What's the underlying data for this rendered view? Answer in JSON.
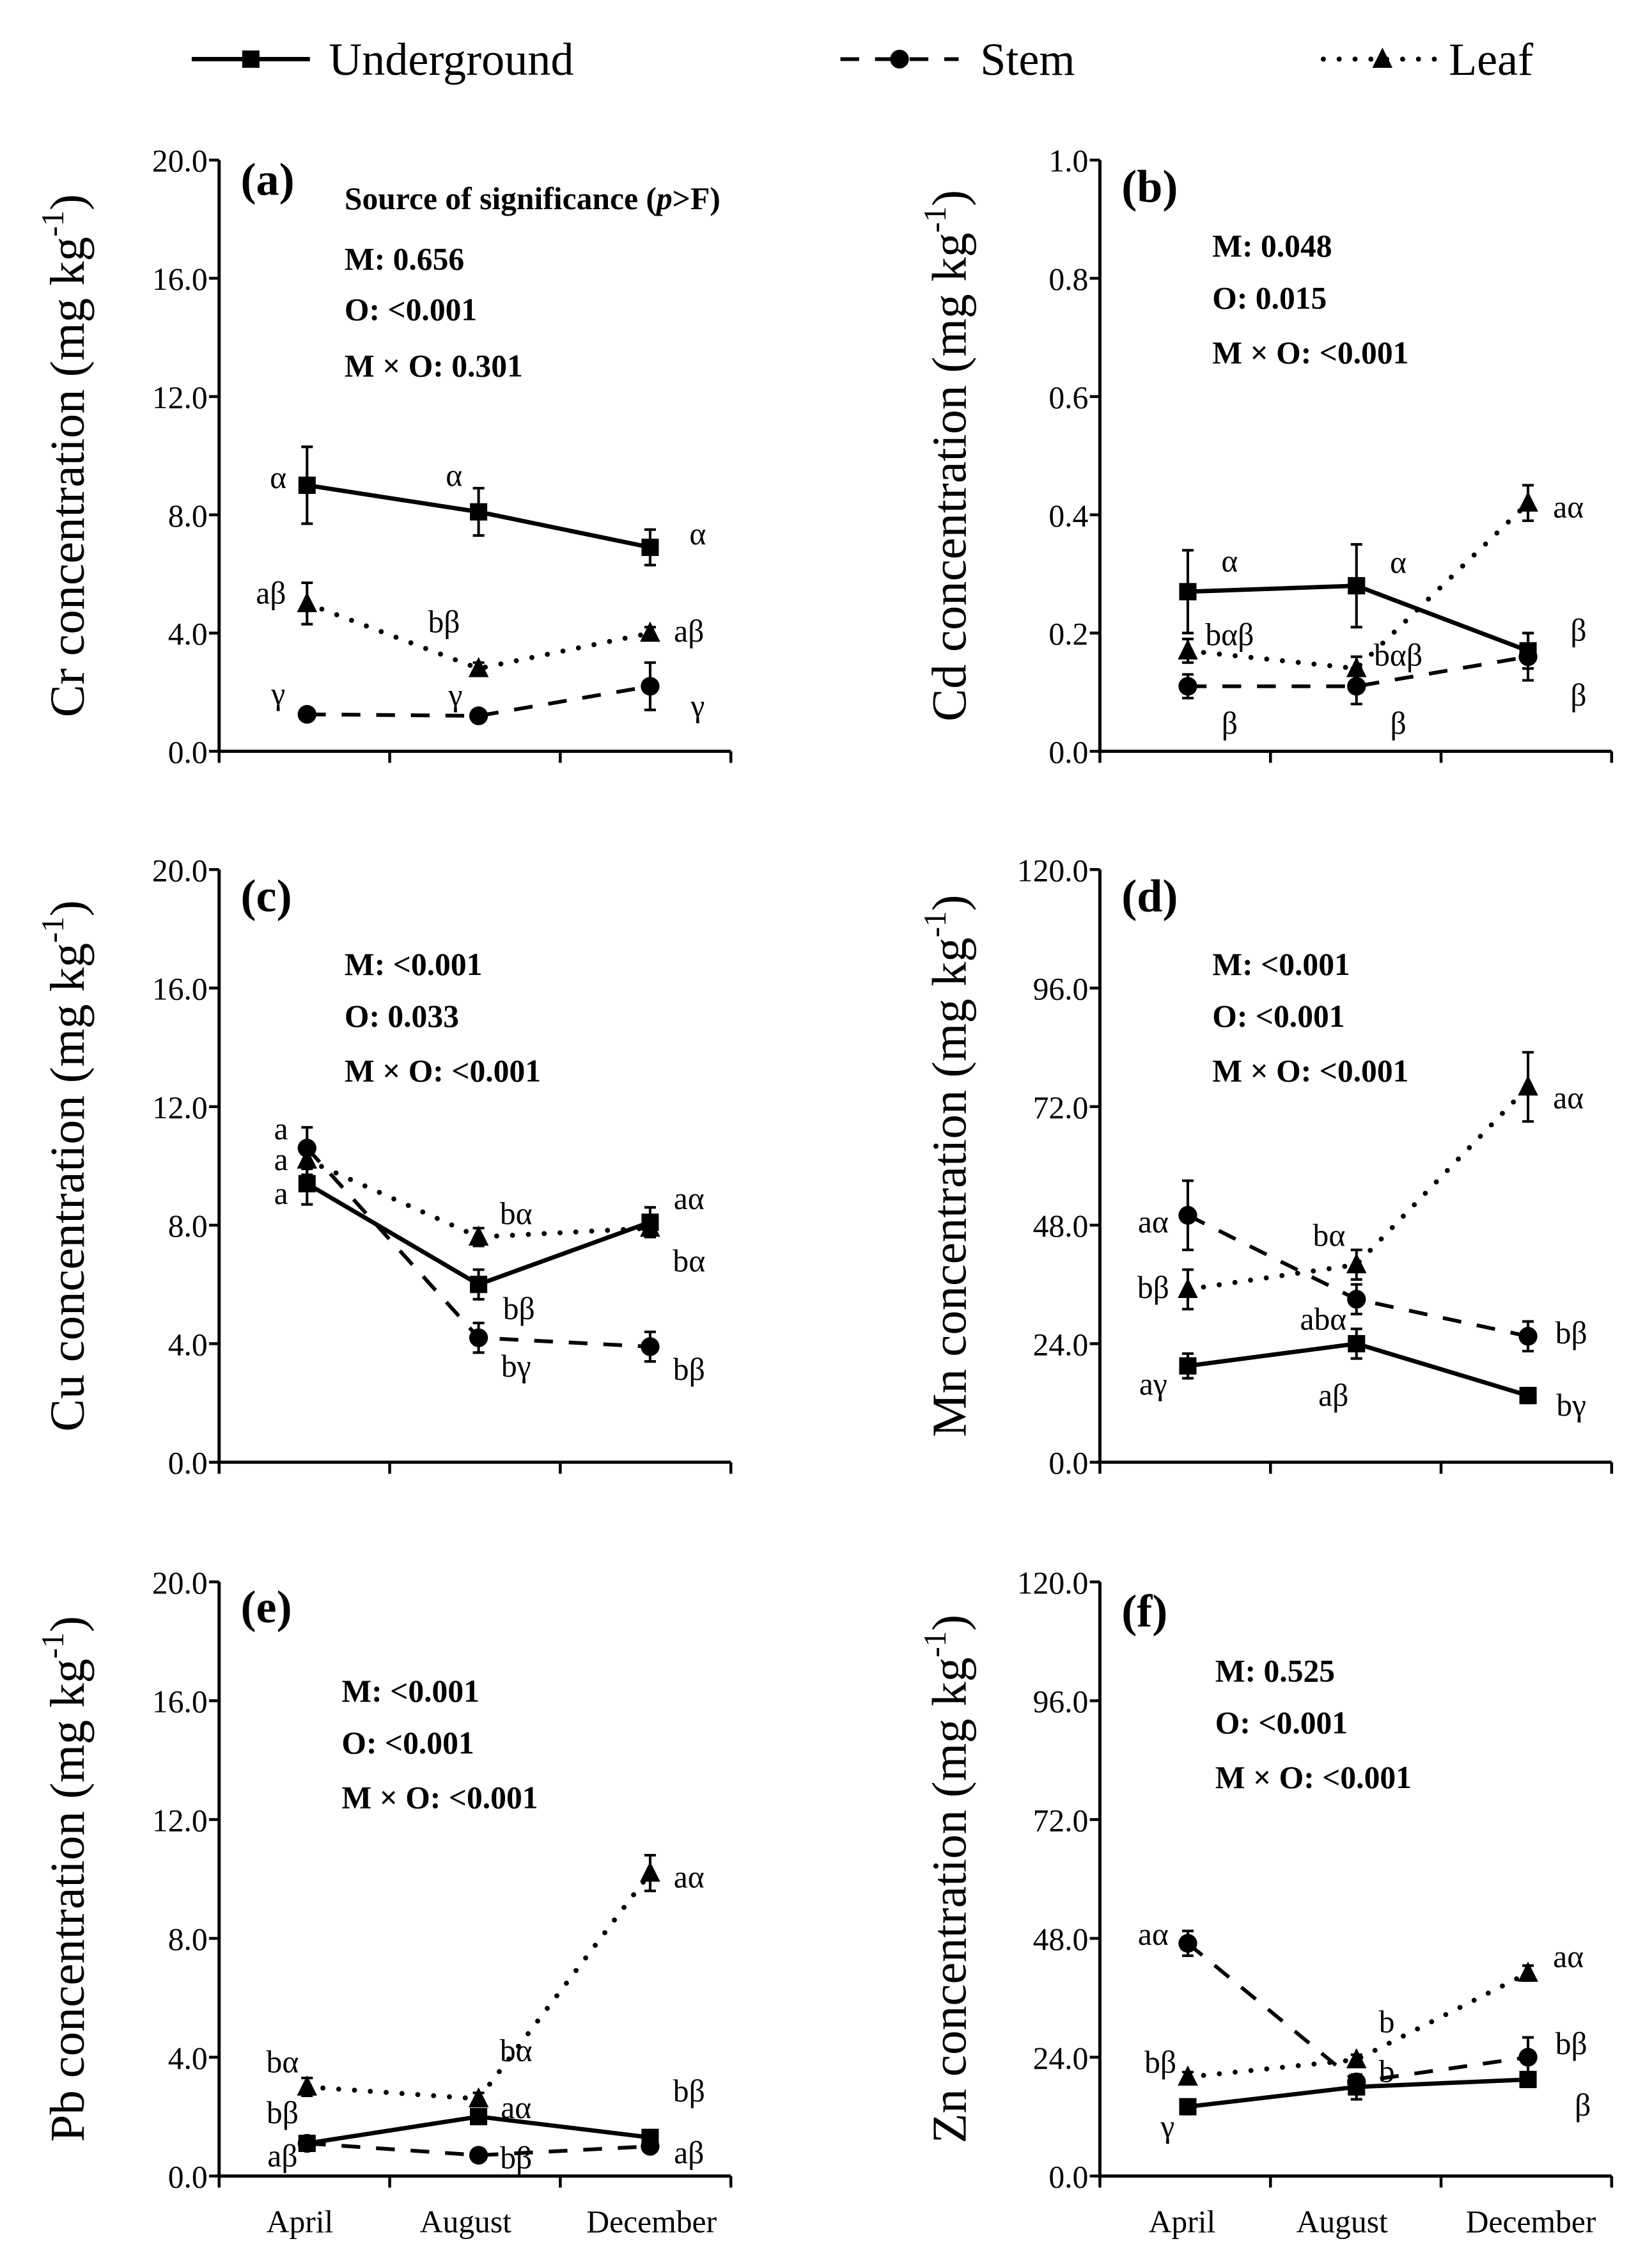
{
  "legend": [
    {
      "name": "Underground",
      "style": "solid",
      "marker": "square"
    },
    {
      "name": "Stem",
      "style": "dashed",
      "marker": "circle"
    },
    {
      "name": "Leaf",
      "style": "dotted",
      "marker": "triangle"
    }
  ],
  "chart_data": [
    {
      "type": "line",
      "panel": "(a)",
      "ylabel": "Cr concentration (mg kg",
      "ylim": [
        0,
        20
      ],
      "yticks": [
        "0.0",
        "4.0",
        "8.0",
        "12.0",
        "16.0",
        "20.0"
      ],
      "categories": [
        "April",
        "August",
        "December"
      ],
      "significance": [
        "Source of significance (p>F)",
        "M: 0.656",
        "O: <0.001",
        "M × O: 0.301"
      ],
      "series": [
        {
          "name": "Underground",
          "values": [
            9.0,
            8.1,
            6.9
          ],
          "err": [
            1.3,
            0.8,
            0.6
          ],
          "labels": [
            "α",
            "α",
            "α"
          ]
        },
        {
          "name": "Stem",
          "values": [
            1.25,
            1.2,
            2.2
          ],
          "err": [
            0.1,
            0.1,
            0.8
          ],
          "labels": [
            "γ",
            "γ",
            "γ"
          ]
        },
        {
          "name": "Leaf",
          "values": [
            5.0,
            2.8,
            4.0
          ],
          "err": [
            0.7,
            0.2,
            0.2
          ],
          "labels": [
            "aβ",
            "bβ",
            "aβ"
          ]
        }
      ]
    },
    {
      "type": "line",
      "panel": "(b)",
      "ylabel": "Cd concentration (mg kg",
      "ylim": [
        0,
        1
      ],
      "yticks": [
        "0.0",
        "0.2",
        "0.4",
        "0.6",
        "0.8",
        "1.0"
      ],
      "categories": [
        "April",
        "August",
        "December"
      ],
      "significance": [
        "M: 0.048",
        "O: 0.015",
        "M × O: <0.001"
      ],
      "series": [
        {
          "name": "Underground",
          "values": [
            0.27,
            0.28,
            0.17
          ],
          "err": [
            0.07,
            0.07,
            0.03
          ],
          "labels": [
            "α",
            "α",
            "β"
          ]
        },
        {
          "name": "Stem",
          "values": [
            0.11,
            0.11,
            0.16
          ],
          "err": [
            0.02,
            0.03,
            0.04
          ],
          "labels": [
            "β",
            "β",
            "β"
          ]
        },
        {
          "name": "Leaf",
          "values": [
            0.17,
            0.14,
            0.42
          ],
          "err": [
            0.02,
            0.02,
            0.03
          ],
          "labels": [
            "bαβ",
            "bαβ",
            "aα"
          ]
        }
      ]
    },
    {
      "type": "line",
      "panel": "(c)",
      "ylabel": "Cu concentration (mg kg",
      "ylim": [
        0,
        20
      ],
      "yticks": [
        "0.0",
        "4.0",
        "8.0",
        "12.0",
        "16.0",
        "20.0"
      ],
      "categories": [
        "April",
        "August",
        "December"
      ],
      "significance": [
        "M: <0.001",
        "O: 0.033",
        "M × O: <0.001"
      ],
      "series": [
        {
          "name": "Underground",
          "values": [
            9.4,
            6.0,
            8.1
          ],
          "err": [
            0.7,
            0.5,
            0.5
          ],
          "labels": [
            "a",
            "bβ",
            "aα"
          ]
        },
        {
          "name": "Stem",
          "values": [
            10.6,
            4.2,
            3.9
          ],
          "err": [
            0.7,
            0.5,
            0.5
          ],
          "labels": [
            "a",
            "bγ",
            "bβ"
          ]
        },
        {
          "name": "Leaf",
          "values": [
            10.2,
            7.6,
            7.9
          ],
          "err": [
            0.5,
            0.3,
            0.3
          ],
          "labels": [
            "a",
            "bα",
            "bα"
          ]
        }
      ]
    },
    {
      "type": "line",
      "panel": "(d)",
      "ylabel": "Mn concentration (mg kg",
      "ylim": [
        0,
        120
      ],
      "yticks": [
        "0.0",
        "24.0",
        "48.0",
        "72.0",
        "96.0",
        "120.0"
      ],
      "categories": [
        "April",
        "August",
        "December"
      ],
      "significance": [
        "M: <0.001",
        "O: <0.001",
        "M × O: <0.001"
      ],
      "series": [
        {
          "name": "Underground",
          "values": [
            19.5,
            24.0,
            13.5
          ],
          "err": [
            2.5,
            3.0,
            1.5
          ],
          "labels": [
            "aγ",
            "aβ",
            "bγ"
          ]
        },
        {
          "name": "Stem",
          "values": [
            50.0,
            33.0,
            25.5
          ],
          "err": [
            7.0,
            3.0,
            3.0
          ],
          "labels": [
            "aα",
            "abα",
            "bβ"
          ]
        },
        {
          "name": "Leaf",
          "values": [
            35.0,
            40.0,
            76.0
          ],
          "err": [
            4.0,
            3.0,
            7.0
          ],
          "labels": [
            "bβ",
            "bα",
            "aα"
          ]
        }
      ]
    },
    {
      "type": "line",
      "panel": "(e)",
      "ylabel": "Pb concentration (mg kg",
      "ylim": [
        0,
        20
      ],
      "yticks": [
        "0.0",
        "4.0",
        "8.0",
        "12.0",
        "16.0",
        "20.0"
      ],
      "categories": [
        "April",
        "August",
        "December"
      ],
      "significance": [
        "M: <0.001",
        "O: <0.001",
        "M × O: <0.001"
      ],
      "series": [
        {
          "name": "Underground",
          "values": [
            1.1,
            2.0,
            1.3
          ],
          "err": [
            0.15,
            0.2,
            0.2
          ],
          "labels": [
            "aβ",
            "aα",
            "aβ"
          ]
        },
        {
          "name": "Stem",
          "values": [
            1.1,
            0.7,
            1.0
          ],
          "err": [
            0.1,
            0.1,
            0.1
          ],
          "labels": [
            "bβ",
            "bβ",
            "bβ"
          ]
        },
        {
          "name": "Leaf",
          "values": [
            3.0,
            2.6,
            10.2
          ],
          "err": [
            0.3,
            0.2,
            0.6
          ],
          "labels": [
            "bα",
            "bα",
            "aα"
          ]
        }
      ]
    },
    {
      "type": "line",
      "panel": "(f)",
      "ylabel": "Zn concentration (mg kg",
      "ylim": [
        0,
        120
      ],
      "yticks": [
        "0.0",
        "24.0",
        "48.0",
        "72.0",
        "96.0",
        "120.0"
      ],
      "categories": [
        "April",
        "August",
        "December"
      ],
      "significance": [
        "M: 0.525",
        "O: <0.001",
        "M × O: <0.001"
      ],
      "series": [
        {
          "name": "Underground",
          "values": [
            14.0,
            18.0,
            19.5
          ],
          "err": [
            0.8,
            2.5,
            1.0
          ],
          "labels": [
            "γ",
            "",
            "β"
          ]
        },
        {
          "name": "Stem",
          "values": [
            47.0,
            19.0,
            24.0
          ],
          "err": [
            2.5,
            1.5,
            4.0
          ],
          "labels": [
            "aα",
            "b",
            "bβ"
          ]
        },
        {
          "name": "Leaf",
          "values": [
            20.0,
            23.5,
            41.0
          ],
          "err": [
            1.0,
            1.0,
            1.5
          ],
          "labels": [
            "bβ",
            "b",
            "aα"
          ]
        }
      ]
    }
  ],
  "ylabel_unit_sup": "-1",
  "ylabel_close": ")"
}
